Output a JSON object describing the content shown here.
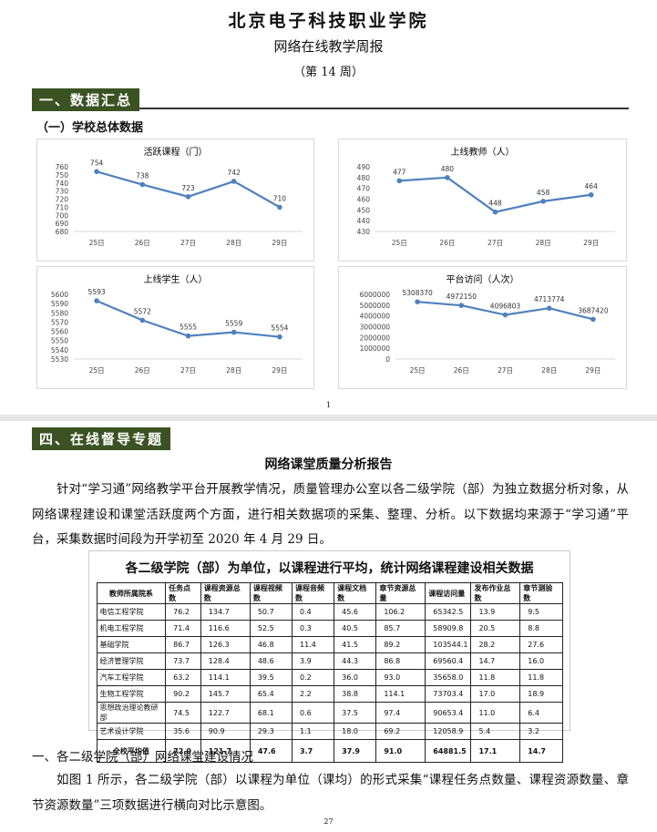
{
  "header": {
    "title": "北京电子科技职业学院",
    "subtitle": "网络在线教学周报",
    "issue": "（第 14 周）"
  },
  "section1": {
    "heading": "一、数据汇总",
    "subheading": "（一）学校总体数据"
  },
  "chart_data": [
    {
      "type": "line",
      "title": "活跃课程（门）",
      "categories": [
        "25日",
        "26日",
        "27日",
        "28日",
        "29日"
      ],
      "values": [
        754,
        738,
        723,
        742,
        710
      ],
      "color": "#4f81bd",
      "ylim": [
        680,
        760
      ],
      "yticks": [
        680,
        690,
        700,
        710,
        720,
        730,
        740,
        750,
        760
      ]
    },
    {
      "type": "line",
      "title": "上线教师（人）",
      "categories": [
        "25日",
        "26日",
        "27日",
        "28日",
        "29日"
      ],
      "values": [
        477,
        480,
        448,
        458,
        464
      ],
      "color": "#4f81bd",
      "ylim": [
        430,
        490
      ],
      "yticks": [
        430,
        440,
        450,
        460,
        470,
        480,
        490
      ]
    },
    {
      "type": "line",
      "title": "上线学生（人）",
      "categories": [
        "25日",
        "26日",
        "27日",
        "28日",
        "29日"
      ],
      "values": [
        5593,
        5572,
        5555,
        5559,
        5554
      ],
      "color": "#4f81bd",
      "ylim": [
        5530,
        5600
      ],
      "yticks": [
        5530,
        5540,
        5550,
        5560,
        5570,
        5580,
        5590,
        5600
      ]
    },
    {
      "type": "line",
      "title": "平台访问（人次）",
      "categories": [
        "25日",
        "26日",
        "27日",
        "28日",
        "29日"
      ],
      "values": [
        5308370,
        4972150,
        4096803,
        4713774,
        3687420
      ],
      "color": "#4f81bd",
      "ylim": [
        0,
        6000000
      ],
      "yticks": [
        0,
        1000000,
        2000000,
        3000000,
        4000000,
        5000000,
        6000000
      ]
    }
  ],
  "page1_number": "1",
  "section4": {
    "heading": "四、在线督导专题",
    "report_title": "网络课堂质量分析报告",
    "paragraph": "针对“学习通”网络教学平台开展教学情况，质量管理办公室以各二级学院（部）为独立数据分析对象，从网络课程建设和课堂活跃度两个方面，进行相关数据项的采集、整理、分析。以下数据均来源于“学习通”平台，采集数据时间段为开学初至 2020 年 4 月 29 日。"
  },
  "table": {
    "title": "各二级学院（部）为单位，以课程进行平均，统计网络课程建设相关数据",
    "headers": [
      "教师所属院系",
      "任务点数",
      "课程资源总数",
      "课程视频数",
      "课程音频数",
      "课程文档数",
      "章节资源总量",
      "课程访问量",
      "发布作业总数",
      "章节测验数"
    ],
    "rows": [
      [
        "电信工程学院",
        "76.2",
        "134.7",
        "50.7",
        "0.4",
        "45.6",
        "106.2",
        "65342.5",
        "13.9",
        "9.5"
      ],
      [
        "机电工程学院",
        "71.4",
        "116.6",
        "52.5",
        "0.3",
        "40.5",
        "85.7",
        "58909.8",
        "20.5",
        "8.8"
      ],
      [
        "基础学院",
        "86.7",
        "126.3",
        "46.8",
        "11.4",
        "41.5",
        "89.2",
        "103544.1",
        "28.2",
        "27.6"
      ],
      [
        "经济管理学院",
        "73.7",
        "128.4",
        "48.6",
        "3.9",
        "44.3",
        "86.8",
        "69560.4",
        "14.7",
        "16.0"
      ],
      [
        "汽车工程学院",
        "63.2",
        "114.1",
        "39.5",
        "0.2",
        "36.0",
        "93.0",
        "35658.0",
        "11.8",
        "11.8"
      ],
      [
        "生物工程学院",
        "90.2",
        "145.7",
        "65.4",
        "2.2",
        "38.8",
        "114.1",
        "73703.4",
        "17.0",
        "18.9"
      ],
      [
        "思想政治理论教研部",
        "74.5",
        "122.7",
        "68.1",
        "0.6",
        "37.5",
        "97.4",
        "90653.4",
        "11.0",
        "6.4"
      ],
      [
        "艺术设计学院",
        "35.6",
        "90.9",
        "29.3",
        "1.1",
        "18.0",
        "69.2",
        "12058.9",
        "5.4",
        "3.2"
      ]
    ],
    "footer": [
      "全校平均值",
      "72.0",
      "121.7",
      "47.6",
      "3.7",
      "37.9",
      "91.0",
      "64881.5",
      "17.1",
      "14.7"
    ]
  },
  "section5": {
    "heading": "一、各二级学院（部）网络课堂建设情况",
    "paragraph": "如图 1 所示，各二级学院（部）以课程为单位（课均）的形式采集“课程任务点数量、课程资源数量、章节资源数量”三项数据进行横向对比示意图。"
  },
  "page2_number": "27"
}
